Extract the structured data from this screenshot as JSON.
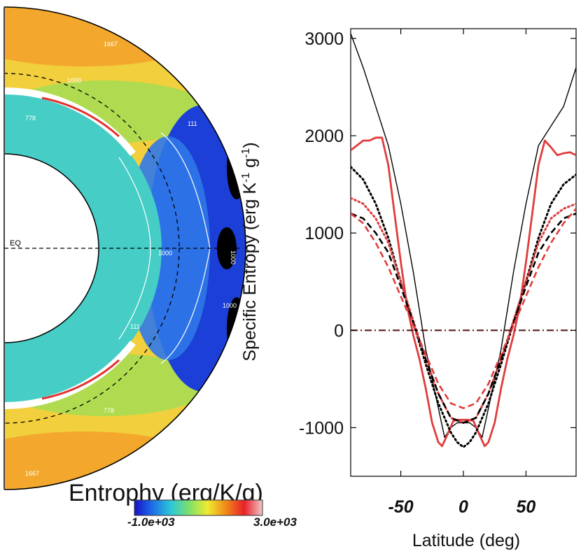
{
  "chart_data": [
    {
      "type": "heatmap",
      "title": "Entrophy (erg/K/g)",
      "geometry": "meridional half-disk, north up, equator marked",
      "equator_label": "EQ",
      "colorbar": {
        "min_label": "-1.0e+03",
        "max_label": "3.0e+03",
        "min": -1000,
        "max": 3000,
        "colors": [
          "#1a10c8",
          "#1e6fe8",
          "#2cc8d8",
          "#7ee06a",
          "#f0ea30",
          "#f08a18",
          "#e8202a",
          "#f0c8c8"
        ]
      },
      "contour_labels": [
        "1667",
        "1000",
        "778",
        "111",
        "1000",
        "1000",
        "1000",
        "111",
        "778",
        "1667"
      ],
      "colors": {
        "outer_shell": "#f2cf3c",
        "mid_shell": "#1c3fd8",
        "inner_shell": "#46cdc6",
        "core": "#ffffff",
        "minimum_pocket": "#000000"
      }
    },
    {
      "type": "line",
      "xlabel": "Latitude (deg)",
      "ylabel": "Specific Entropy (erg K⁻¹ g⁻¹)",
      "ylabel_parts": {
        "main": "Specific Entropy (erg K",
        "exp1": "-1",
        "mid": " g",
        "exp2": "-1",
        "close": ")"
      },
      "xlim": [
        -90,
        90
      ],
      "ylim": [
        -1500,
        3100
      ],
      "xticks": [
        -50,
        0,
        50
      ],
      "xtick_labels": [
        "-50",
        "0",
        "50"
      ],
      "yticks": [
        -1000,
        0,
        1000,
        2000,
        3000
      ],
      "ytick_labels": [
        "-1000",
        "0",
        "1000",
        "2000",
        "3000"
      ],
      "series": [
        {
          "name": "black solid",
          "color": "#000000",
          "style": "solid",
          "x": [
            -90,
            -80,
            -70,
            -60,
            -50,
            -40,
            -30,
            -20,
            -15,
            -10,
            -5,
            0,
            5,
            10,
            15,
            20,
            30,
            40,
            50,
            60,
            70,
            80,
            90
          ],
          "y": [
            3050,
            2700,
            2300,
            1900,
            1300,
            600,
            -200,
            -800,
            -1100,
            -1000,
            -950,
            -950,
            -950,
            -1000,
            -1100,
            -800,
            -200,
            600,
            1300,
            1900,
            2100,
            2300,
            2700
          ]
        },
        {
          "name": "red solid",
          "color": "#e03c3c",
          "style": "solid",
          "x": [
            -90,
            -85,
            -80,
            -75,
            -70,
            -65,
            -60,
            -55,
            -50,
            -45,
            -40,
            -35,
            -30,
            -25,
            -20,
            -17,
            -12,
            -8,
            -4,
            0,
            4,
            8,
            12,
            17,
            20,
            25,
            30,
            35,
            40,
            45,
            50,
            55,
            60,
            65,
            70,
            75,
            80,
            85,
            90
          ],
          "y": [
            1850,
            1900,
            1950,
            1950,
            1980,
            1980,
            1700,
            1200,
            700,
            250,
            -50,
            -300,
            -600,
            -950,
            -1150,
            -1190,
            -1050,
            -930,
            -920,
            -920,
            -920,
            -930,
            -1050,
            -1190,
            -1150,
            -950,
            -600,
            -300,
            -50,
            250,
            700,
            1200,
            1700,
            1950,
            1880,
            1800,
            1820,
            1830,
            1800
          ]
        },
        {
          "name": "black dotted",
          "color": "#000000",
          "style": "dotted",
          "x": [
            -90,
            -80,
            -70,
            -60,
            -50,
            -40,
            -30,
            -20,
            -10,
            -5,
            0,
            5,
            10,
            20,
            30,
            40,
            50,
            60,
            70,
            80,
            90
          ],
          "y": [
            1680,
            1550,
            1300,
            950,
            500,
            80,
            -350,
            -750,
            -1050,
            -1150,
            -1200,
            -1150,
            -1050,
            -750,
            -350,
            80,
            500,
            950,
            1300,
            1500,
            1600
          ]
        },
        {
          "name": "red dotted",
          "color": "#e03c3c",
          "style": "dotted",
          "x": [
            -90,
            -80,
            -70,
            -60,
            -50,
            -40,
            -30,
            -20,
            -10,
            0,
            10,
            20,
            30,
            40,
            50,
            60,
            70,
            80,
            90
          ],
          "y": [
            1360,
            1300,
            1150,
            900,
            500,
            100,
            -300,
            -650,
            -900,
            -950,
            -900,
            -650,
            -300,
            100,
            500,
            900,
            1150,
            1250,
            1300
          ]
        },
        {
          "name": "black dashed",
          "color": "#000000",
          "style": "dashed",
          "x": [
            -90,
            -80,
            -70,
            -60,
            -50,
            -40,
            -30,
            -20,
            -10,
            0,
            10,
            20,
            30,
            40,
            50,
            60,
            70,
            80,
            90
          ],
          "y": [
            1200,
            1150,
            1000,
            800,
            450,
            80,
            -300,
            -650,
            -900,
            -950,
            -900,
            -650,
            -300,
            80,
            450,
            800,
            1000,
            1150,
            1200
          ]
        },
        {
          "name": "red dashed",
          "color": "#e03c3c",
          "style": "dashed",
          "x": [
            -90,
            -80,
            -70,
            -60,
            -50,
            -40,
            -30,
            -20,
            -10,
            0,
            10,
            20,
            30,
            40,
            50,
            60,
            70,
            80,
            90
          ],
          "y": [
            1200,
            1100,
            900,
            650,
            350,
            50,
            -250,
            -550,
            -750,
            -800,
            -750,
            -550,
            -250,
            50,
            350,
            650,
            900,
            1100,
            1250
          ]
        },
        {
          "name": "zero reference",
          "color": "#5a1a1a",
          "style": "dashdot",
          "x": [
            -90,
            90
          ],
          "y": [
            0,
            0
          ]
        }
      ]
    }
  ]
}
